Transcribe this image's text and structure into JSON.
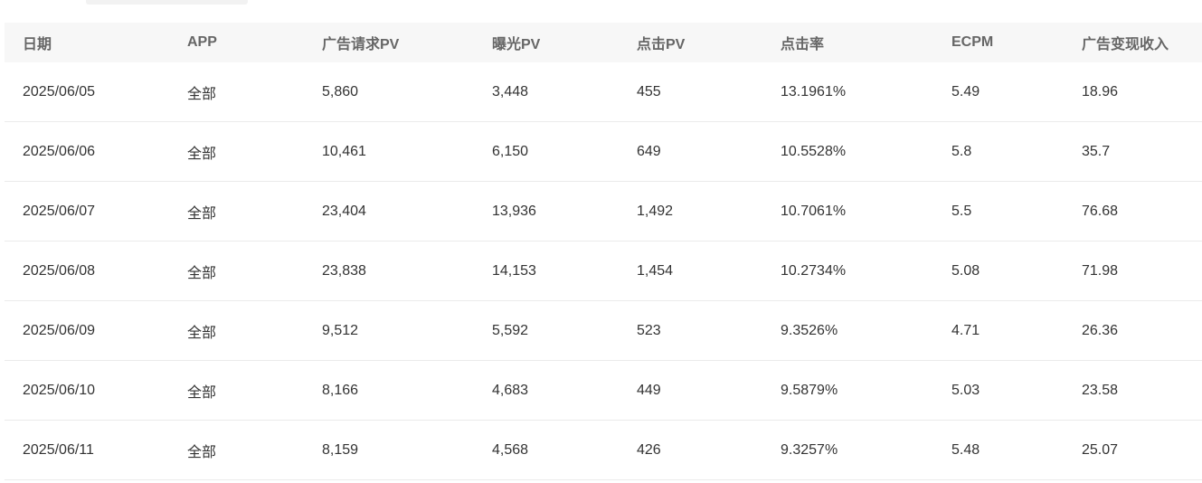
{
  "headers": [
    "日期",
    "APP",
    "广告请求PV",
    "曝光PV",
    "点击PV",
    "点击率",
    "ECPM",
    "广告变现收入"
  ],
  "rows": [
    [
      "2025/06/05",
      "全部",
      "5,860",
      "3,448",
      "455",
      "13.1961%",
      "5.49",
      "18.96"
    ],
    [
      "2025/06/06",
      "全部",
      "10,461",
      "6,150",
      "649",
      "10.5528%",
      "5.8",
      "35.7"
    ],
    [
      "2025/06/07",
      "全部",
      "23,404",
      "13,936",
      "1,492",
      "10.7061%",
      "5.5",
      "76.68"
    ],
    [
      "2025/06/08",
      "全部",
      "23,838",
      "14,153",
      "1,454",
      "10.2734%",
      "5.08",
      "71.98"
    ],
    [
      "2025/06/09",
      "全部",
      "9,512",
      "5,592",
      "523",
      "9.3526%",
      "4.71",
      "26.36"
    ],
    [
      "2025/06/10",
      "全部",
      "8,166",
      "4,683",
      "449",
      "9.5879%",
      "5.03",
      "23.58"
    ],
    [
      "2025/06/11",
      "全部",
      "8,159",
      "4,568",
      "426",
      "9.3257%",
      "5.48",
      "25.07"
    ]
  ]
}
